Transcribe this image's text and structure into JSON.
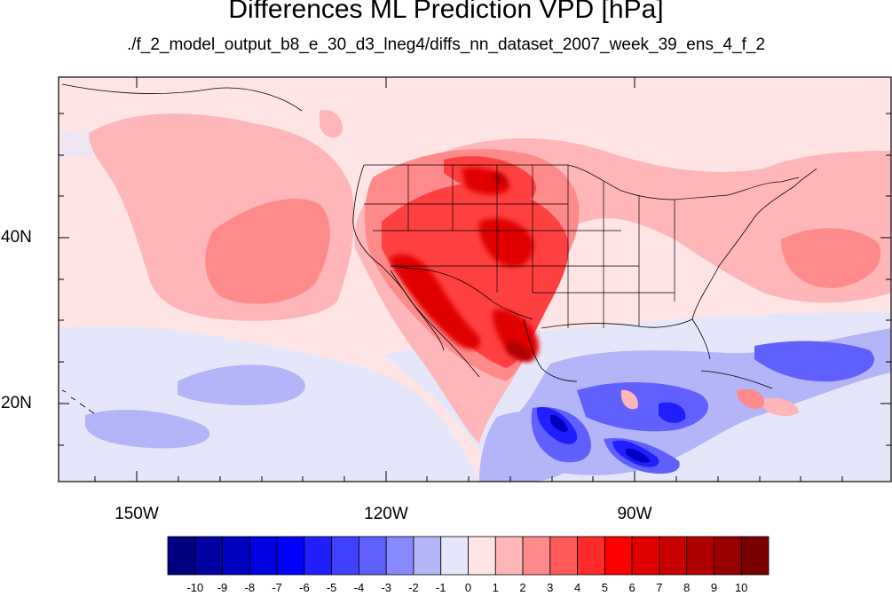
{
  "title": "Differences ML Prediction VPD [hPa]",
  "subtitle": "./f_2_model_output_b8_e_30_d3_lneg4/diffs_nn_dataset_2007_week_39_ens_4_f_2",
  "map": {
    "projection": "lat-lon (cylindrical equidistant)",
    "lon_range": [
      -159.4,
      -61.0
    ],
    "lat_range": [
      9.5,
      58.3
    ],
    "lat_ticks": [
      "40N",
      "20N"
    ],
    "lon_ticks": [
      "150W",
      "120W",
      "90W"
    ],
    "features": [
      "coastlines",
      "US state boundaries",
      "national boundaries"
    ],
    "dominant_patterns": [
      "strong positive differences (5-9) over the western and central United States and northern Mexico",
      "weak positive differences (1-3) over most of the North Pacific and western Atlantic",
      "negative differences (-2 to -7) over the Gulf of Mexico, Caribbean and eastern tropical Pacific"
    ]
  },
  "colorbar": {
    "labels": [
      "-10",
      "-9",
      "-8",
      "-7",
      "-6",
      "-5",
      "-4",
      "-3",
      "-2",
      "-1",
      "0",
      "1",
      "2",
      "3",
      "4",
      "5",
      "6",
      "7",
      "8",
      "9",
      "10"
    ],
    "colors": [
      "#000080",
      "#0000a0",
      "#0000c0",
      "#0000e0",
      "#0000ff",
      "#2020ff",
      "#4040ff",
      "#6060ff",
      "#8888ff",
      "#b4b4f8",
      "#e6e6fa",
      "#ffe4e6",
      "#ffb6b9",
      "#ff8a8a",
      "#ff5a5a",
      "#ff2a2a",
      "#ff0000",
      "#e00000",
      "#c80000",
      "#b00000",
      "#980000",
      "#7a0000"
    ]
  }
}
